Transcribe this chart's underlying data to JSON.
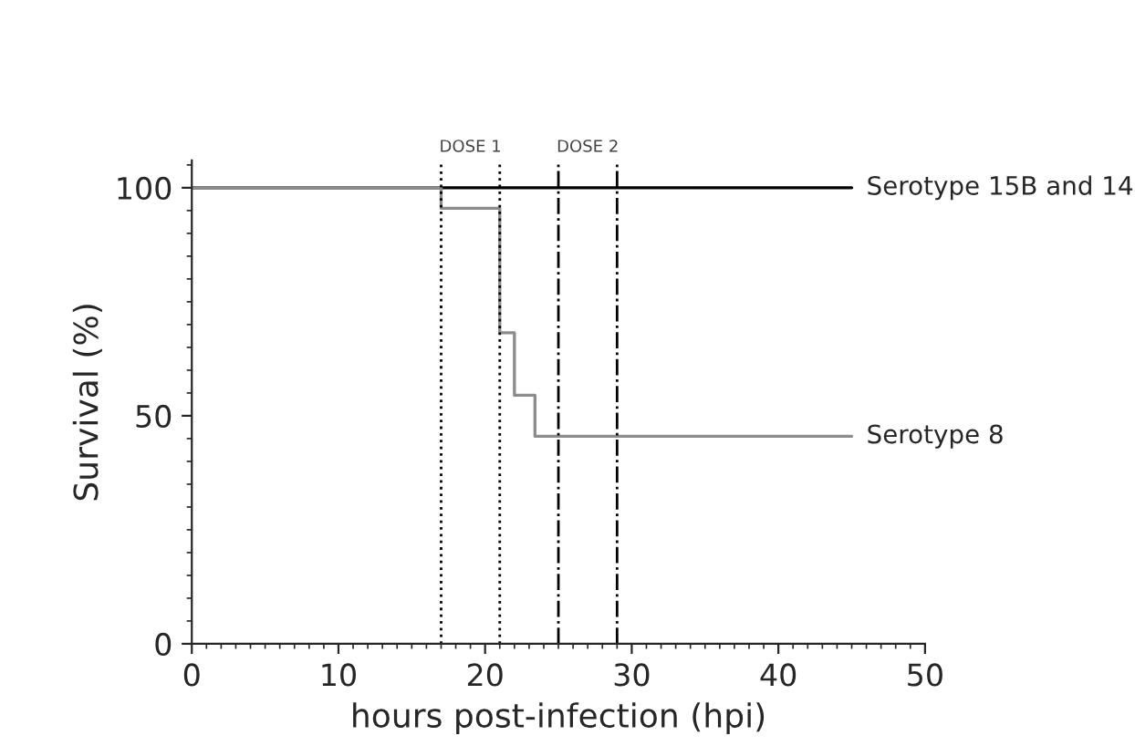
{
  "chart_data": {
    "type": "step",
    "xlabel": "hours post-infection (hpi)",
    "ylabel": "Survival (%)",
    "xlim": [
      0,
      50
    ],
    "xticks": [
      0,
      10,
      20,
      30,
      40,
      50
    ],
    "ylim": [
      0,
      106
    ],
    "yticks": [
      0,
      50,
      100
    ],
    "series": [
      {
        "name": "Serotype 15B and 14",
        "color": "#000000",
        "x": [
          0,
          45
        ],
        "values": [
          100,
          100
        ]
      },
      {
        "name": "Serotype 8",
        "color": "#8c8c8c",
        "x": [
          0,
          17,
          21,
          22,
          23.4,
          45
        ],
        "values": [
          100,
          95.5,
          68.2,
          54.5,
          45.5,
          45.5
        ]
      }
    ],
    "ref_lines": [
      {
        "axis": "x",
        "value": 17,
        "line_style": "dotted",
        "color": "#000000"
      },
      {
        "axis": "x",
        "value": 21,
        "line_style": "dotted",
        "color": "#000000"
      },
      {
        "axis": "x",
        "value": 25,
        "line_style": "dashdot",
        "color": "#000000"
      },
      {
        "axis": "x",
        "value": 29,
        "line_style": "dashdot",
        "color": "#000000"
      }
    ],
    "annotations": [
      "DOSE 1",
      "DOSE 2"
    ],
    "grid": false,
    "legend": false
  }
}
